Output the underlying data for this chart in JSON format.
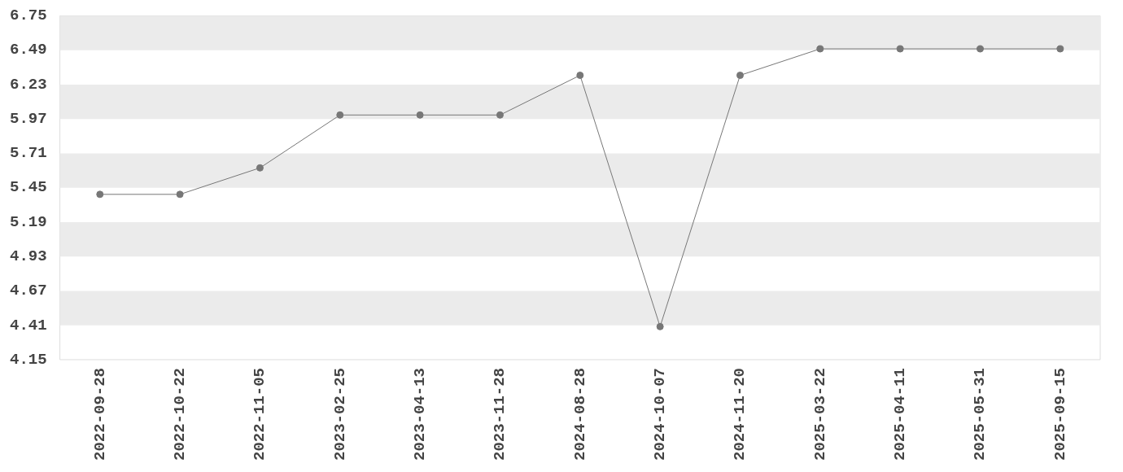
{
  "chart_data": {
    "type": "line",
    "categories": [
      "2022-09-28",
      "2022-10-22",
      "2022-11-05",
      "2023-02-25",
      "2023-04-13",
      "2023-11-28",
      "2024-08-28",
      "2024-10-07",
      "2024-11-20",
      "2025-03-22",
      "2025-04-11",
      "2025-05-31",
      "2025-09-15"
    ],
    "series": [
      {
        "color": "#777777",
        "values": [
          5.4,
          5.4,
          5.6,
          6.0,
          6.0,
          6.0,
          6.3,
          4.4,
          6.3,
          6.5,
          6.5,
          6.5,
          6.5
        ]
      }
    ],
    "ylim": [
      4.15,
      6.75
    ],
    "yticks": [
      4.15,
      4.41,
      4.67,
      4.93,
      5.19,
      5.45,
      5.71,
      5.97,
      6.23,
      6.49,
      6.75
    ],
    "legend": false,
    "marker": "circle",
    "line_style": "solid"
  }
}
